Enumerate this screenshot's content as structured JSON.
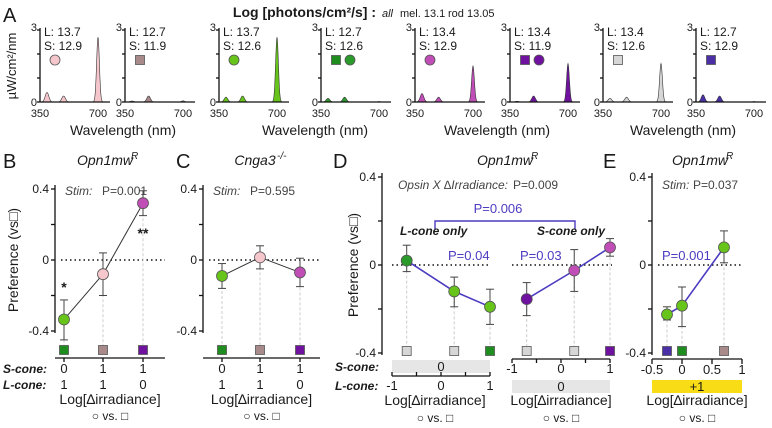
{
  "chart_data": [
    {
      "panel": "A",
      "type": "area",
      "panel_label": "A",
      "title": "Log [photons/cm²/s] :",
      "subtitle_italic": "all",
      "subtitle_mel": "mel. 13.1",
      "subtitle_rod": "rod 13.05",
      "ylabel": "µW/cm²/nm",
      "xlabel": "Wavelength (nm)",
      "xlim": [
        350,
        700
      ],
      "ylim": [
        0,
        3
      ],
      "xtick_labels": [
        "350",
        "700"
      ],
      "ytick_labels": [
        "0",
        "3"
      ],
      "spectra": [
        {
          "L": "L: 13.7",
          "S": "S: 12.9",
          "color": "#f5c6cc",
          "markers": [
            {
              "shape": "circle",
              "color": "#f5c6cc"
            }
          ],
          "peaks": [
            [
              385,
              0.4
            ],
            [
              468,
              0.25
            ],
            [
              640,
              2.7
            ]
          ]
        },
        {
          "L": "L: 12.7",
          "S": "S: 11.9",
          "color": "#a88a8a",
          "markers": [
            {
              "shape": "square",
              "color": "#a88a8a"
            }
          ],
          "peaks": [
            [
              385,
              0.04
            ],
            [
              468,
              0.25
            ],
            [
              640,
              0.05
            ]
          ]
        },
        {
          "L": "L: 13.7",
          "S": "S: 12.6",
          "color": "#66c41a",
          "markers": [
            {
              "shape": "circle",
              "color": "#66c41a"
            }
          ],
          "peaks": [
            [
              385,
              0.2
            ],
            [
              468,
              0.25
            ],
            [
              640,
              2.7
            ]
          ]
        },
        {
          "L": "L: 12.7",
          "S": "S: 12.6",
          "color": "#2a9a2a",
          "markers": [
            {
              "shape": "square",
              "color": "#1e8c1e"
            },
            {
              "shape": "circle",
              "color": "#2a9a2a"
            }
          ],
          "peaks": [
            [
              385,
              0.15
            ],
            [
              468,
              0.2
            ],
            [
              640,
              0.02
            ]
          ]
        },
        {
          "L": "L: 13.4",
          "S": "S: 12.9",
          "color": "#c14eb6",
          "markers": [
            {
              "shape": "circle",
              "color": "#c14eb6"
            }
          ],
          "peaks": [
            [
              385,
              0.35
            ],
            [
              468,
              0.2
            ],
            [
              640,
              1.5
            ]
          ]
        },
        {
          "L": "L: 13.4",
          "S": "S: 11.9",
          "color": "#7012a0",
          "markers": [
            {
              "shape": "square",
              "color": "#7012a0"
            },
            {
              "shape": "circle",
              "color": "#7012a0"
            }
          ],
          "peaks": [
            [
              385,
              0.03
            ],
            [
              468,
              0.25
            ],
            [
              640,
              1.6
            ]
          ]
        },
        {
          "L": "L: 13.4",
          "S": "S: 12.6",
          "color": "#d6d6d6",
          "markers": [
            {
              "shape": "square",
              "color": "#d6d6d6"
            }
          ],
          "peaks": [
            [
              385,
              0.15
            ],
            [
              468,
              0.2
            ],
            [
              640,
              1.6
            ]
          ]
        },
        {
          "L": "L: 12.7",
          "S": "S: 12.9",
          "color": "#4a2fa6",
          "markers": [
            {
              "shape": "square",
              "color": "#4a2fa6"
            }
          ],
          "peaks": [
            [
              385,
              0.3
            ],
            [
              468,
              0.25
            ],
            [
              640,
              0.02
            ]
          ]
        }
      ]
    },
    {
      "panel": "B",
      "type": "line",
      "panel_label": "B",
      "title": "Opn1mw",
      "title_sup": "R",
      "stat_italic": "Stim:",
      "stat": "P=0.001",
      "ylabel": "Preference (vs□)",
      "ylim": [
        -0.4,
        0.4
      ],
      "ytick_labels": [
        "0.4",
        "0",
        "-0.4"
      ],
      "row_labels": [
        "S-cone:",
        "L-cone:"
      ],
      "xlabel": "Log[∆irradiance]",
      "xlabel2": "○ vs. □",
      "points": [
        {
          "s": "0",
          "l": "1",
          "y": -0.335,
          "lo": -0.45,
          "hi": -0.225,
          "circle": "#66c41a",
          "square": "#1e8c1e",
          "sig": "*"
        },
        {
          "s": "1",
          "l": "1",
          "y": -0.08,
          "lo": -0.2,
          "hi": 0.04,
          "circle": "#f5c6cc",
          "square": "#a88a8a",
          "sig": ""
        },
        {
          "s": "1",
          "l": "0",
          "y": 0.32,
          "lo": 0.25,
          "hi": 0.39,
          "circle": "#c14eb6",
          "square": "#7012a0",
          "sig": "**"
        }
      ]
    },
    {
      "panel": "C",
      "type": "line",
      "panel_label": "C",
      "title": "Cnga3",
      "title_sup": "-/-",
      "stat_italic": "Stim:",
      "stat": "P=0.595",
      "ylim": [
        -0.4,
        0.4
      ],
      "ytick_labels": [
        "0.4",
        "0",
        "-0.4"
      ],
      "xlabel": "Log[∆irradiance]",
      "xlabel2": "○ vs. □",
      "points": [
        {
          "s": "0",
          "l": "1",
          "y": -0.09,
          "lo": -0.16,
          "hi": -0.02,
          "circle": "#66c41a",
          "square": "#1e8c1e"
        },
        {
          "s": "1",
          "l": "1",
          "y": 0.015,
          "lo": -0.05,
          "hi": 0.08,
          "circle": "#f5c6cc",
          "square": "#a88a8a"
        },
        {
          "s": "1",
          "l": "0",
          "y": -0.07,
          "lo": -0.15,
          "hi": 0.01,
          "circle": "#c14eb6",
          "square": "#7012a0"
        }
      ]
    },
    {
      "panel": "D",
      "type": "line",
      "panel_label": "D",
      "title": "Opn1mw",
      "title_sup": "R",
      "stat_italic": "Opsin X ∆Irradiance:",
      "stat": "P=0.009",
      "bracket_stat": "P=0.006",
      "ylabel": "Preference (vs□)",
      "ylim": [
        -0.4,
        0.4
      ],
      "ytick_labels": [
        "0.4",
        "0",
        "-0.4"
      ],
      "row_labels": [
        "S-cone:",
        "L-cone:"
      ],
      "line_color": "#4b3cc0",
      "subplots": [
        {
          "name": "L-cone only",
          "stat": "P=0.04",
          "fixed_value": "0",
          "xtick_labels": [
            "-1",
            "0",
            "1"
          ],
          "xlim": [
            -1,
            1
          ],
          "xlabel": "Log[∆irradiance]",
          "xlabel2": "○ vs. □",
          "points": [
            {
              "x": -0.7,
              "y": 0.02,
              "lo": -0.03,
              "hi": 0.09,
              "circle": "#2a9a2a",
              "square": "#d6d6d6"
            },
            {
              "x": 0.27,
              "y": -0.12,
              "lo": -0.19,
              "hi": -0.055,
              "circle": "#66c41a",
              "square": "#d6d6d6"
            },
            {
              "x": 1.0,
              "y": -0.19,
              "lo": -0.27,
              "hi": -0.11,
              "circle": "#66c41a",
              "square": "#1e8c1e"
            }
          ]
        },
        {
          "name": "S-cone only",
          "stat": "P=0.03",
          "fixed_value": "0",
          "xtick_labels": [
            "-1",
            "0",
            "1"
          ],
          "xlim": [
            -1,
            1
          ],
          "xlabel": "Log[∆irradiance]",
          "xlabel2": "○ vs. □",
          "points": [
            {
              "x": -0.7,
              "y": -0.155,
              "lo": -0.23,
              "hi": -0.08,
              "circle": "#7012a0",
              "square": "#d6d6d6"
            },
            {
              "x": 0.27,
              "y": -0.025,
              "lo": -0.12,
              "hi": 0.07,
              "circle": "#c14eb6",
              "square": "#d6d6d6"
            },
            {
              "x": 1.0,
              "y": 0.08,
              "lo": 0.04,
              "hi": 0.12,
              "circle": "#c14eb6",
              "square": "#7012a0"
            }
          ]
        }
      ]
    },
    {
      "panel": "E",
      "type": "line",
      "panel_label": "E",
      "title": "Opn1mw",
      "title_sup": "R",
      "stat_italic": "Stim:",
      "stat": "P=0.037",
      "trend_stat": "P=0.001",
      "ylim": [
        -0.4,
        0.4
      ],
      "ytick_labels": [
        "0.4",
        "0",
        "-0.4"
      ],
      "xlim": [
        -0.5,
        1
      ],
      "xtick_labels": [
        "-0.5",
        "0",
        "0.5",
        "1"
      ],
      "band_label": "+1",
      "band_color": "#f8dc16",
      "xlabel": "Log[∆irradiance]",
      "xlabel2": "○ vs. □",
      "line_color": "#4b3cc0",
      "points": [
        {
          "x": -0.25,
          "y": -0.225,
          "lo": -0.25,
          "hi": -0.19,
          "circle": "#66c41a",
          "square": "#4a2fa6"
        },
        {
          "x": 0.0,
          "y": -0.185,
          "lo": -0.28,
          "hi": -0.1,
          "circle": "#66c41a",
          "square": "#1e8c1e"
        },
        {
          "x": 0.7,
          "y": 0.08,
          "lo": 0.01,
          "hi": 0.155,
          "circle": "#66c41a",
          "square": "#a88a8a"
        }
      ]
    }
  ]
}
